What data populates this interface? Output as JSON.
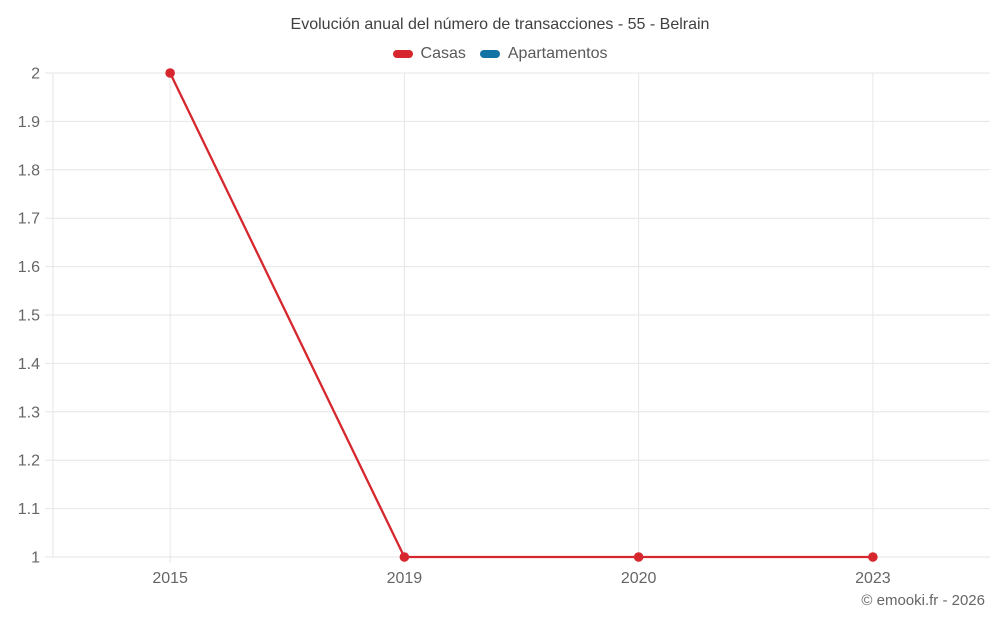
{
  "chart_data": {
    "type": "line",
    "title": "Evolución anual del número de transacciones - 55 - Belrain",
    "xlabel": "",
    "ylabel": "",
    "categories": [
      "2015",
      "2019",
      "2020",
      "2023"
    ],
    "series": [
      {
        "name": "Casas",
        "color": "#d5272d",
        "values": [
          2,
          1,
          1,
          1
        ]
      },
      {
        "name": "Apartamentos",
        "color": "#1272a3",
        "values": []
      }
    ],
    "ylim": [
      1,
      2
    ],
    "ytick_step": 0.1,
    "ytick_labels": [
      "1",
      "1.1",
      "1.2",
      "1.3",
      "1.4",
      "1.5",
      "1.6",
      "1.7",
      "1.8",
      "1.9",
      "2"
    ],
    "grid": true,
    "legend_position": "top",
    "axis_label_color": "#666666",
    "grid_color": "#e6e6e6"
  },
  "footer": {
    "copyright": "© emooki.fr - 2026"
  }
}
